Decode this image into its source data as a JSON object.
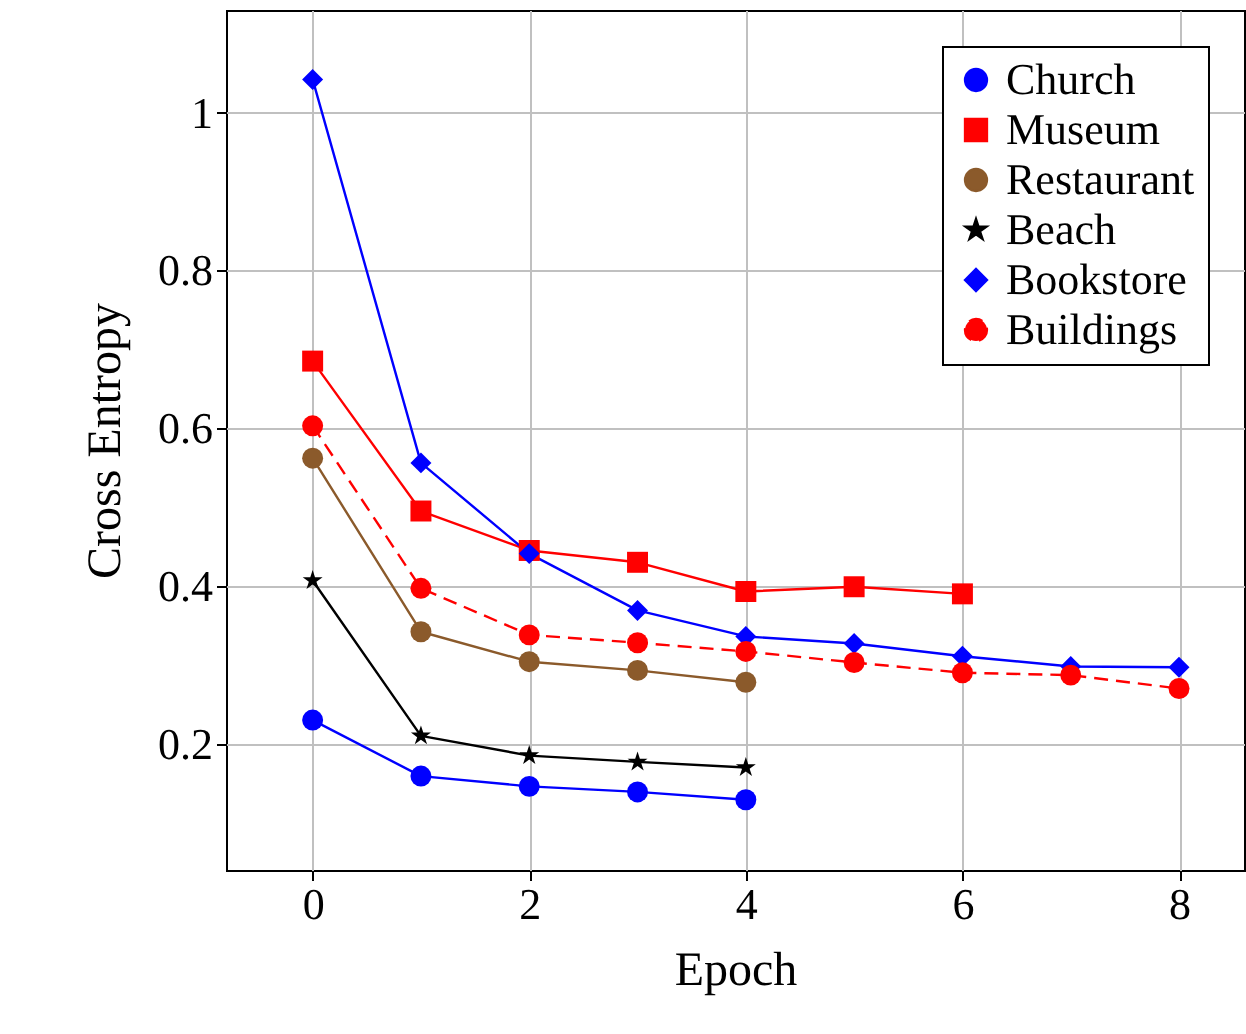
{
  "chart_data": {
    "type": "line",
    "xlabel": "Epoch",
    "ylabel": "Cross Entropy",
    "xlim": [
      -0.8,
      8.6
    ],
    "ylim": [
      0.04,
      1.13
    ],
    "xticks": [
      0,
      2,
      4,
      6,
      8
    ],
    "yticks": [
      0.2,
      0.4,
      0.6,
      0.8,
      1
    ],
    "grid": true,
    "legend": "top right",
    "series": [
      {
        "name": "Church",
        "color": "#0000ff",
        "marker": "circle",
        "line_style": "solid",
        "x": [
          0,
          1,
          2,
          3,
          4
        ],
        "values": [
          0.23,
          0.159,
          0.146,
          0.139,
          0.129
        ]
      },
      {
        "name": "Museum",
        "color": "#ff0000",
        "marker": "square",
        "line_style": "solid",
        "x": [
          0,
          1,
          2,
          3,
          4,
          5,
          6
        ],
        "values": [
          0.685,
          0.495,
          0.445,
          0.43,
          0.393,
          0.399,
          0.39
        ]
      },
      {
        "name": "Restaurant",
        "color": "#8b5a2b",
        "marker": "circle",
        "line_style": "solid",
        "x": [
          0,
          1,
          2,
          3,
          4
        ],
        "values": [
          0.562,
          0.342,
          0.304,
          0.293,
          0.278
        ]
      },
      {
        "name": "Beach",
        "color": "#000000",
        "marker": "star",
        "line_style": "solid",
        "x": [
          0,
          1,
          2,
          3,
          4
        ],
        "values": [
          0.407,
          0.21,
          0.185,
          0.177,
          0.17
        ]
      },
      {
        "name": "Bookstore",
        "color": "#0000ff",
        "marker": "diamond",
        "line_style": "solid",
        "x": [
          0,
          1,
          2,
          3,
          4,
          5,
          6,
          7,
          8
        ],
        "values": [
          1.042,
          0.556,
          0.441,
          0.369,
          0.336,
          0.327,
          0.311,
          0.298,
          0.297
        ]
      },
      {
        "name": "Buildings",
        "color": "#ff0000",
        "marker": "circle",
        "line_style": "dashed",
        "x": [
          0,
          1,
          2,
          3,
          4,
          5,
          6,
          7,
          8
        ],
        "values": [
          0.603,
          0.397,
          0.338,
          0.328,
          0.317,
          0.303,
          0.29,
          0.287,
          0.27
        ]
      }
    ]
  }
}
